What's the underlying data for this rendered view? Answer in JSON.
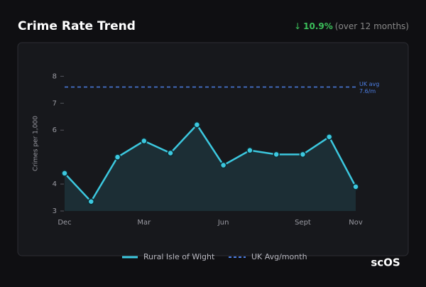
{
  "header": {
    "title": "Crime Rate Trend",
    "arrow": "↓",
    "change": "10.9%",
    "period": "(over 12 months)"
  },
  "chart_data": {
    "type": "line",
    "y_label": "Crimes per 1,000",
    "categories": [
      "Dec",
      null,
      null,
      "Mar",
      null,
      null,
      "Jun",
      null,
      null,
      "Sept",
      null,
      "Nov"
    ],
    "series": [
      {
        "name": "Rural Isle of Wight",
        "color": "#3cc8df",
        "values": [
          4.4,
          3.35,
          5.0,
          5.6,
          5.15,
          6.2,
          4.7,
          5.25,
          5.1,
          5.1,
          5.75,
          3.9
        ]
      }
    ],
    "reference": {
      "name": "UK Avg/month",
      "color": "#4d7fe6",
      "value": 7.6,
      "annotation": [
        "UK avg",
        "7.6/m"
      ]
    },
    "ylim": [
      3,
      8.3
    ],
    "yticks": [
      3,
      4,
      6,
      7,
      8
    ],
    "grid": false
  },
  "logo": "scOS"
}
